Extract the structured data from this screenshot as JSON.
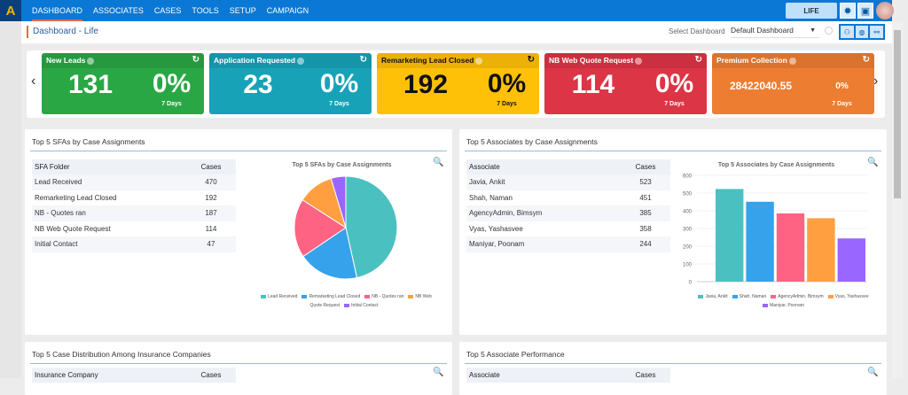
{
  "nav": {
    "logo": "A",
    "items": [
      "DASHBOARD",
      "ASSOCIATES",
      "CASES",
      "TOOLS",
      "SETUP",
      "CAMPAIGN"
    ],
    "life": "LIFE"
  },
  "header": {
    "title": "Dashboard - Life",
    "select_label": "Select Dashboard",
    "select_value": "Default Dashboard"
  },
  "tiles": [
    {
      "title": "New Leads",
      "value": "131",
      "pct": "0%",
      "days": "7 Days",
      "color": "#2aa745"
    },
    {
      "title": "Application Requested",
      "value": "23",
      "pct": "0%",
      "days": "7 Days",
      "color": "#18a2b8"
    },
    {
      "title": "Remarketing Lead Closed",
      "value": "192",
      "pct": "0%",
      "days": "7 Days",
      "color": "#ffc107"
    },
    {
      "title": "NB Web Quote Request",
      "value": "114",
      "pct": "0%",
      "days": "7 Days",
      "color": "#dc3545"
    },
    {
      "title": "Premium Collection",
      "value": "28422040.55",
      "pct": "0%",
      "days": "7 Days",
      "color": "#ed7d31"
    }
  ],
  "sfa": {
    "title": "Top 5 SFAs by Case Assignments",
    "headers": [
      "SFA Folder",
      "Cases"
    ],
    "rows": [
      [
        "Lead Received",
        "470"
      ],
      [
        "Remarketing Lead Closed",
        "192"
      ],
      [
        "NB - Quotes ran",
        "187"
      ],
      [
        "NB Web Quote Request",
        "114"
      ],
      [
        "Initial Contact",
        "47"
      ]
    ]
  },
  "assoc": {
    "title": "Top 5 Associates by Case Assignments",
    "headers": [
      "Associate",
      "Cases"
    ],
    "rows": [
      [
        "Javia, Ankit",
        "523"
      ],
      [
        "Shah, Naman",
        "451"
      ],
      [
        "AgencyAdmin, Bimsym",
        "385"
      ],
      [
        "Vyas, Yashasvee",
        "358"
      ],
      [
        "Maniyar, Poonam",
        "244"
      ]
    ]
  },
  "bottom": {
    "left_title": "Top 5 Case Distribution Among Insurance Companies",
    "left_headers": [
      "Insurance Company",
      "Cases"
    ],
    "right_title": "Top 5 Associate Performance",
    "right_headers": [
      "Associate",
      "Cases"
    ]
  },
  "chart_data": [
    {
      "type": "pie",
      "title": "Top 5 SFAs by Case Assignments",
      "categories": [
        "Lead Received",
        "Remarketing Lead Closed",
        "NB - Quotes ran",
        "NB Web Quote Request",
        "Initial Contact"
      ],
      "values": [
        470,
        192,
        187,
        114,
        47
      ],
      "colors": [
        "#4bc0c0",
        "#36a2eb",
        "#ff6384",
        "#ff9f40",
        "#9966ff"
      ]
    },
    {
      "type": "bar",
      "title": "Top 5 Associates by Case Assignments",
      "categories": [
        "Javia, Ankit",
        "Shah, Naman",
        "AgencyAdmin, Bimsym",
        "Vyas, Yashasvee",
        "Maniyar, Poonam"
      ],
      "values": [
        523,
        451,
        385,
        358,
        244
      ],
      "ylim": [
        0,
        600
      ],
      "yticks": [
        "0",
        "100",
        "200",
        "300",
        "400",
        "500",
        "600"
      ],
      "colors": [
        "#4bc0c0",
        "#36a2eb",
        "#ff6384",
        "#ff9f40",
        "#9966ff"
      ]
    }
  ]
}
